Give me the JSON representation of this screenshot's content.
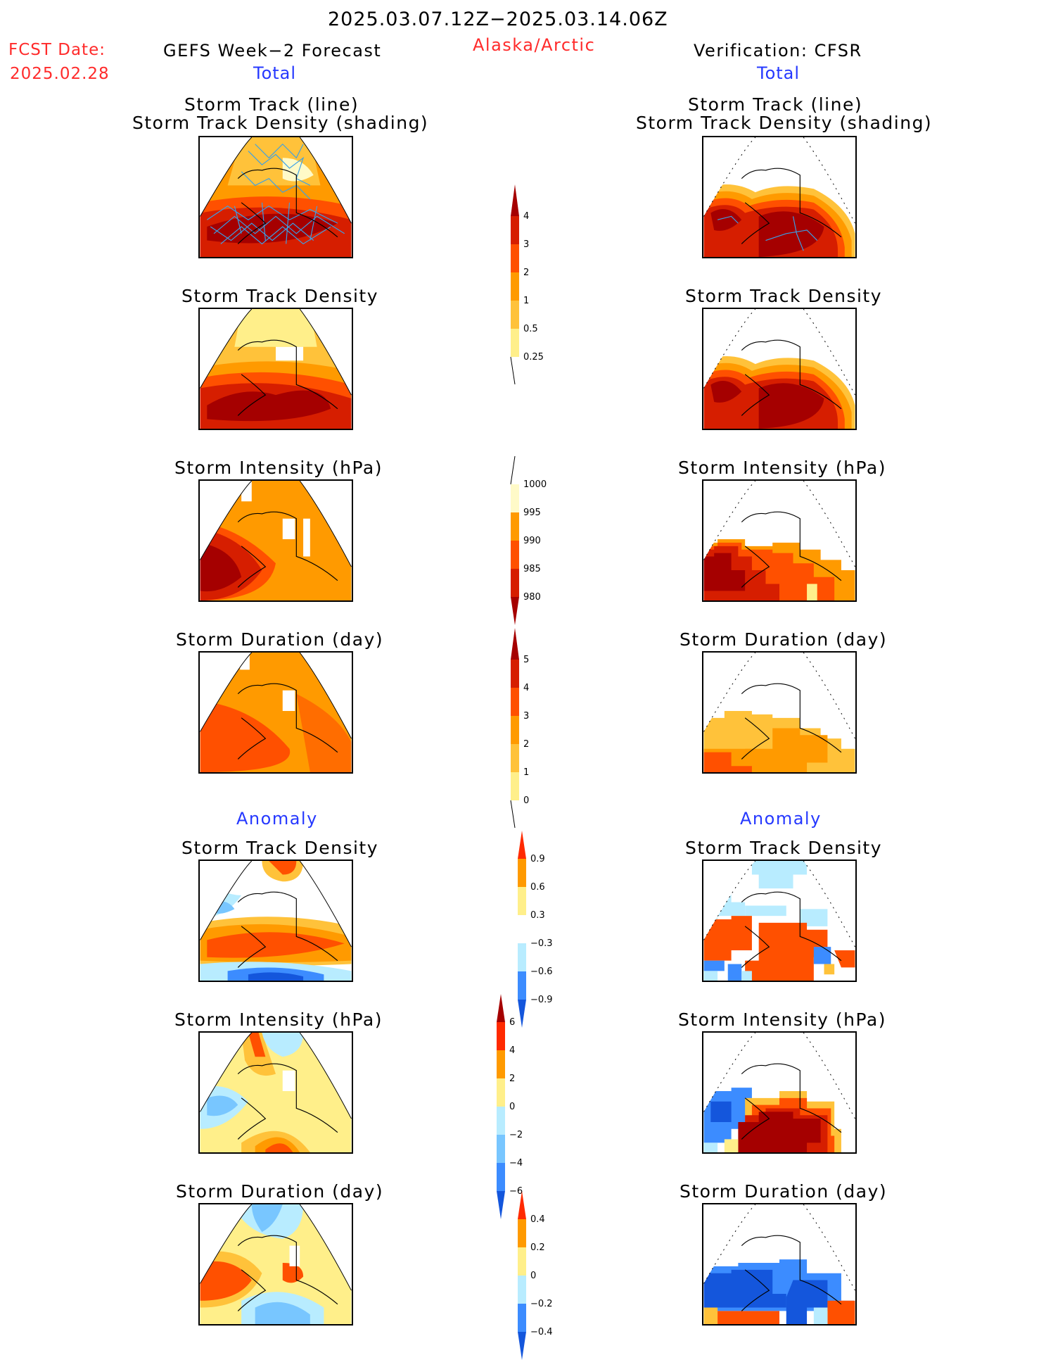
{
  "header": {
    "period": "2025.03.07.12Z−2025.03.14.06Z",
    "fcst_label": "FCST Date:",
    "fcst_date": "2025.02.28",
    "left_title": "GEFS Week−2 Forecast",
    "region": "Alaska/Arctic",
    "right_title": "Verification: CFSR",
    "total_left": "Total",
    "total_right": "Total",
    "anomaly_left": "Anomaly",
    "anomaly_right": "Anomaly"
  },
  "panels": {
    "track_line_1": "Storm Track (line)",
    "track_line_2": "Storm Track Density (shading)",
    "density": "Storm Track Density",
    "intensity": "Storm Intensity (hPa)",
    "duration": "Storm Duration (day)"
  },
  "colorbars": {
    "density": [
      "4",
      "3",
      "2",
      "1",
      "0.5",
      "0.25"
    ],
    "intensity": [
      "1000",
      "995",
      "990",
      "985",
      "980"
    ],
    "duration": [
      "5",
      "4",
      "3",
      "2",
      "1",
      "0"
    ],
    "density_anom": [
      "0.9",
      "0.6",
      "0.3",
      "−0.3",
      "−0.6",
      "−0.9"
    ],
    "intensity_anom": [
      "6",
      "4",
      "2",
      "0",
      "−2",
      "−4",
      "−6"
    ],
    "duration_anom": [
      "0.4",
      "0.2",
      "0",
      "−0.2",
      "−0.4"
    ]
  },
  "colors": {
    "dark_red": "#a50000",
    "red": "#d61e00",
    "red_orange": "#ff5000",
    "orange": "#ff9a00",
    "light_orange": "#ffc23a",
    "pale_yellow": "#ffef8a",
    "cream": "#fffac8",
    "pale_blue": "#b8ecff",
    "light_blue": "#78c6ff",
    "blue": "#3c8cff",
    "dark_blue": "#1456dc",
    "track_line": "#3aa0e8"
  }
}
